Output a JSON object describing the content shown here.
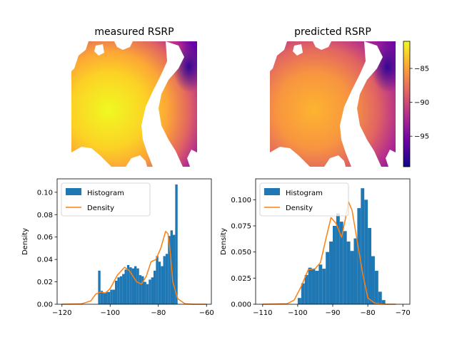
{
  "chart_data": [
    {
      "type": "heatmap",
      "title": "measured RSRP",
      "colormap": "plasma",
      "axes": "off",
      "description_values": "RSRP map; white areas are no data"
    },
    {
      "type": "heatmap",
      "title": "predicted RSRP",
      "colormap": "plasma",
      "axes": "off",
      "colorbar": {
        "ticks": [
          -85,
          -90,
          -95
        ],
        "tick_labels": [
          "−85",
          "−90",
          "−95"
        ],
        "range": [
          -99.5,
          -81
        ]
      }
    },
    {
      "type": "bar",
      "subtype": "histogram_with_density",
      "xlabel": "",
      "ylabel": "Density",
      "xlim": [
        -122,
        -58
      ],
      "ylim": [
        0,
        0.112
      ],
      "xticks": [
        -120,
        -100,
        -80,
        -60
      ],
      "xtick_labels": [
        "−120",
        "−100",
        "−80",
        "−60"
      ],
      "yticks": [
        0.0,
        0.02,
        0.04,
        0.06,
        0.08,
        0.1
      ],
      "ytick_labels": [
        "0.00",
        "0.02",
        "0.04",
        "0.06",
        "0.08",
        "0.10"
      ],
      "legend": {
        "placement": "top-left",
        "entries": [
          "Histogram",
          "Density"
        ]
      },
      "colors": {
        "histogram": "#1f77b4",
        "density": "#ff7f0e"
      },
      "bin_edges_start": -105,
      "bin_width": 1,
      "histogram": [
        0.03,
        0.012,
        0.01,
        0.011,
        0.011,
        0.013,
        0.013,
        0.021,
        0.024,
        0.025,
        0.027,
        0.031,
        0.035,
        0.033,
        0.032,
        0.034,
        0.032,
        0.026,
        0.025,
        0.02,
        0.018,
        0.022,
        0.024,
        0.03,
        0.043,
        0.038,
        0.034,
        0.043,
        0.045,
        0.061,
        0.066,
        0.062,
        0.107
      ],
      "density": [
        [
          -120,
          0
        ],
        [
          -112,
          0.0003
        ],
        [
          -108,
          0.003
        ],
        [
          -106,
          0.009
        ],
        [
          -104,
          0.011
        ],
        [
          -102,
          0.01
        ],
        [
          -100,
          0.014
        ],
        [
          -97,
          0.026
        ],
        [
          -94,
          0.033
        ],
        [
          -92,
          0.03
        ],
        [
          -89,
          0.02
        ],
        [
          -87,
          0.018
        ],
        [
          -85,
          0.025
        ],
        [
          -83,
          0.038
        ],
        [
          -81,
          0.04
        ],
        [
          -79,
          0.05
        ],
        [
          -77,
          0.065
        ],
        [
          -76,
          0.063
        ],
        [
          -75,
          0.045
        ],
        [
          -74,
          0.02
        ],
        [
          -72,
          0.005
        ],
        [
          -69,
          0.0005
        ],
        [
          -66,
          0
        ],
        [
          -60,
          0
        ]
      ]
    },
    {
      "type": "bar",
      "subtype": "histogram_with_density",
      "xlabel": "",
      "ylabel": "Density",
      "xlim": [
        -112,
        -68
      ],
      "ylim": [
        0,
        0.12
      ],
      "xticks": [
        -110,
        -100,
        -90,
        -80,
        -70
      ],
      "xtick_labels": [
        "−110",
        "−100",
        "−90",
        "−80",
        "−70"
      ],
      "yticks": [
        0.0,
        0.025,
        0.05,
        0.075,
        0.1
      ],
      "ytick_labels": [
        "0.000",
        "0.025",
        "0.050",
        "0.075",
        "0.100"
      ],
      "legend": {
        "placement": "top-left",
        "entries": [
          "Histogram",
          "Density"
        ]
      },
      "colors": {
        "histogram": "#1f77b4",
        "density": "#ff7f0e"
      },
      "bin_edges_start": -100,
      "bin_width": 1,
      "histogram": [
        0.006,
        0.02,
        0.028,
        0.035,
        0.034,
        0.032,
        0.038,
        0.034,
        0.05,
        0.06,
        0.075,
        0.087,
        0.079,
        0.07,
        0.06,
        0.051,
        0.063,
        0.092,
        0.111,
        0.1,
        0.073,
        0.046,
        0.032,
        0.012,
        0.004
      ],
      "density": [
        [
          -110,
          0
        ],
        [
          -103,
          0.0005
        ],
        [
          -101,
          0.004
        ],
        [
          -99,
          0.017
        ],
        [
          -97,
          0.033
        ],
        [
          -95,
          0.034
        ],
        [
          -93.5,
          0.04
        ],
        [
          -92,
          0.062
        ],
        [
          -90.5,
          0.083
        ],
        [
          -89,
          0.077
        ],
        [
          -87.5,
          0.064
        ],
        [
          -86.5,
          0.08
        ],
        [
          -85.5,
          0.098
        ],
        [
          -84.5,
          0.09
        ],
        [
          -83,
          0.06
        ],
        [
          -81.5,
          0.03
        ],
        [
          -80,
          0.006
        ],
        [
          -78,
          0.001
        ],
        [
          -75,
          0
        ],
        [
          -72,
          0
        ]
      ]
    }
  ]
}
